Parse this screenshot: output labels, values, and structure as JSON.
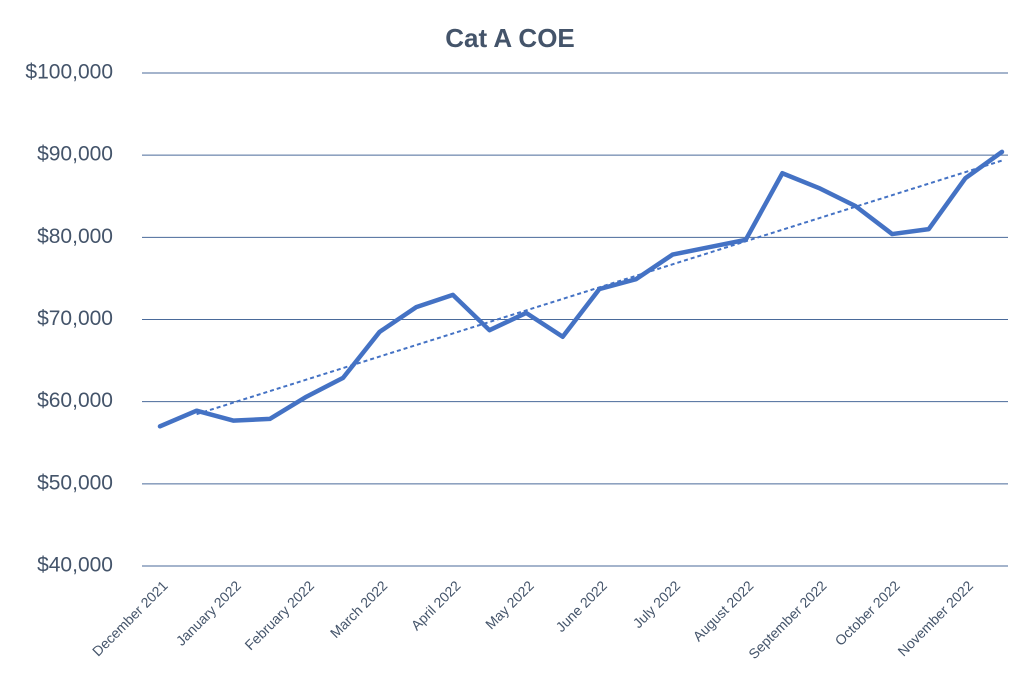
{
  "chart_data": {
    "type": "line",
    "title": "Cat A COE",
    "categories": [
      "December 2021",
      null,
      "January 2022",
      null,
      "February 2022",
      null,
      "March 2022",
      null,
      "April 2022",
      null,
      "May 2022",
      null,
      "June 2022",
      null,
      "July 2022",
      null,
      "August 2022",
      null,
      "September 2022",
      null,
      "October 2022",
      null,
      "November 2022",
      null
    ],
    "series": [
      {
        "name": "Cat A COE",
        "color": "#4472c4",
        "values": [
          57000,
          58900,
          57700,
          57900,
          60600,
          62900,
          68500,
          71500,
          73000,
          68700,
          70800,
          67900,
          73700,
          74900,
          77900,
          78800,
          79700,
          87800,
          86000,
          83800,
          80400,
          81000,
          87200,
          90400
        ]
      }
    ],
    "ylim": [
      40000,
      100000
    ],
    "yticks": [
      {
        "value": 40000,
        "label": "$40,000"
      },
      {
        "value": 50000,
        "label": "$50,000"
      },
      {
        "value": 60000,
        "label": "$60,000"
      },
      {
        "value": 70000,
        "label": "$70,000"
      },
      {
        "value": 80000,
        "label": "$80,000"
      },
      {
        "value": 90000,
        "label": "$90,000"
      },
      {
        "value": 100000,
        "label": "$100,000"
      }
    ],
    "grid": true,
    "trendline": true
  }
}
